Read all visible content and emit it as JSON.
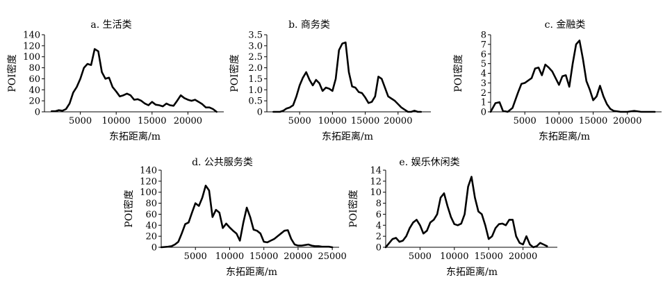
{
  "chart_data": [
    {
      "type": "line",
      "title": "a. 生活类",
      "xlabel": "东拓距离/m",
      "ylabel": "POI密度",
      "xlim": [
        0,
        25000
      ],
      "ylim": [
        0,
        140
      ],
      "xticks": [
        5000,
        10000,
        15000,
        20000
      ],
      "yticks": [
        0,
        20,
        40,
        60,
        80,
        100,
        120,
        140
      ],
      "tick_labels_x": [
        "5000",
        "10000",
        "15000",
        "20000"
      ],
      "tick_labels_y": [
        "0",
        "20",
        "40",
        "60",
        "80",
        "100",
        "120",
        "140"
      ],
      "series": [
        {
          "x": [
            1000,
            1500,
            2000,
            2500,
            3000,
            3500,
            4000,
            4500,
            5000,
            5500,
            6000,
            6500,
            7000,
            7500,
            8000,
            8500,
            9000,
            9500,
            10000,
            10500,
            11000,
            11500,
            12000,
            12500,
            13000,
            13500,
            14000,
            14500,
            15000,
            15500,
            16000,
            16500,
            17000,
            17500,
            18000,
            18500,
            19000,
            19500,
            20000,
            20500,
            21000,
            21500,
            22000,
            22500,
            23000,
            23500,
            24000
          ],
          "y": [
            1,
            1,
            3,
            2,
            5,
            15,
            35,
            45,
            60,
            80,
            87,
            85,
            114,
            110,
            72,
            60,
            62,
            45,
            37,
            28,
            30,
            33,
            30,
            22,
            23,
            20,
            15,
            12,
            18,
            13,
            12,
            10,
            15,
            12,
            11,
            20,
            30,
            25,
            22,
            20,
            22,
            18,
            14,
            8,
            8,
            5,
            0
          ]
        }
      ]
    },
    {
      "type": "line",
      "title": "b. 商务类",
      "xlabel": "东拓距离/m",
      "ylabel": "POI密度",
      "xlim": [
        0,
        25000
      ],
      "ylim": [
        0,
        3.5
      ],
      "xticks": [
        5000,
        10000,
        15000,
        20000
      ],
      "yticks": [
        0,
        0.5,
        1.0,
        1.5,
        2.0,
        2.5,
        3.0,
        3.5
      ],
      "tick_labels_x": [
        "5000",
        "10000",
        "15000",
        "20000"
      ],
      "tick_labels_y": [
        "0",
        "0.5",
        "1.0",
        "1.5",
        "2.0",
        "2.5",
        "3.0",
        "3.5"
      ],
      "series": [
        {
          "x": [
            1000,
            1500,
            2000,
            2500,
            3000,
            3500,
            4000,
            4500,
            5000,
            5500,
            6000,
            6500,
            7000,
            7500,
            8000,
            8500,
            9000,
            9500,
            10000,
            10500,
            11000,
            11500,
            12000,
            12500,
            13000,
            13500,
            14000,
            14500,
            15000,
            15500,
            16000,
            16500,
            17000,
            17500,
            18000,
            18500,
            19000,
            19500,
            20000,
            20500,
            21000,
            21500,
            22000,
            22500,
            23000,
            23500
          ],
          "y": [
            0,
            0,
            0,
            0.05,
            0.15,
            0.2,
            0.3,
            0.7,
            1.2,
            1.55,
            1.8,
            1.45,
            1.2,
            1.45,
            1.3,
            0.95,
            1.1,
            1.05,
            0.95,
            1.5,
            2.8,
            3.1,
            3.15,
            1.8,
            1.15,
            1.1,
            0.9,
            0.85,
            0.65,
            0.4,
            0.45,
            0.7,
            1.6,
            1.5,
            1.1,
            0.7,
            0.6,
            0.5,
            0.35,
            0.2,
            0.1,
            0,
            0,
            0.05,
            0,
            0
          ]
        }
      ]
    },
    {
      "type": "line",
      "title": "c. 金融类",
      "xlabel": "东拓距离/m",
      "ylabel": "POI密度",
      "xlim": [
        0,
        25000
      ],
      "ylim": [
        0,
        8
      ],
      "xticks": [
        5000,
        10000,
        15000,
        20000
      ],
      "yticks": [
        0,
        1,
        2,
        3,
        4,
        5,
        6,
        7,
        8
      ],
      "tick_labels_x": [
        "5000",
        "10000",
        "15000",
        "20000"
      ],
      "tick_labels_y": [
        "0",
        "1",
        "2",
        "3",
        "4",
        "5",
        "6",
        "7",
        "8"
      ],
      "series": [
        {
          "x": [
            0,
            700,
            1300,
            1800,
            2500,
            3200,
            4000,
            4500,
            5000,
            6000,
            6500,
            7000,
            7500,
            8000,
            8500,
            9000,
            9500,
            10000,
            10500,
            11000,
            11500,
            12000,
            12500,
            13000,
            13500,
            14000,
            14500,
            15000,
            15500,
            16000,
            16500,
            17000,
            17500,
            18000,
            19000,
            20000,
            21000,
            22000,
            23000,
            24000
          ],
          "y": [
            0,
            0.9,
            1.0,
            0.1,
            0,
            0.4,
            2.0,
            2.9,
            3.0,
            3.5,
            4.5,
            4.6,
            3.8,
            4.9,
            4.6,
            4.2,
            3.5,
            2.8,
            3.7,
            3.8,
            2.6,
            5.0,
            7.0,
            7.4,
            5.5,
            3.2,
            2.3,
            1.2,
            1.6,
            2.7,
            1.6,
            0.8,
            0.3,
            0.1,
            0,
            0,
            0.1,
            0,
            0,
            0
          ]
        }
      ]
    },
    {
      "type": "line",
      "title": "d. 公共服务类",
      "xlabel": "东拓距离/m",
      "ylabel": "POI密度",
      "xlim": [
        0,
        26000
      ],
      "ylim": [
        0,
        140
      ],
      "xticks": [
        5000,
        10000,
        15000,
        20000,
        25000
      ],
      "yticks": [
        0,
        20,
        40,
        60,
        80,
        100,
        120,
        140
      ],
      "tick_labels_x": [
        "5000",
        "10000",
        "15000",
        "20000",
        "25000"
      ],
      "tick_labels_y": [
        "0",
        "20",
        "40",
        "60",
        "80",
        "100",
        "120",
        "140"
      ],
      "series": [
        {
          "x": [
            0,
            1000,
            1500,
            2000,
            2500,
            3000,
            3500,
            4000,
            4500,
            5000,
            5500,
            6000,
            6500,
            7000,
            7500,
            8000,
            8500,
            9000,
            9500,
            10000,
            10500,
            11000,
            11500,
            12000,
            12500,
            13000,
            13500,
            14000,
            14500,
            15000,
            15500,
            16000,
            16500,
            17000,
            17500,
            18000,
            18500,
            19000,
            19500,
            20000,
            20500,
            21000,
            21500,
            22000,
            22500,
            23000,
            23500,
            24000,
            24500,
            25000
          ],
          "y": [
            0,
            1,
            2,
            5,
            10,
            25,
            42,
            45,
            63,
            80,
            75,
            90,
            112,
            103,
            55,
            68,
            63,
            35,
            43,
            36,
            30,
            25,
            12,
            45,
            72,
            55,
            32,
            30,
            25,
            10,
            9,
            12,
            15,
            20,
            25,
            30,
            31,
            15,
            5,
            3,
            3,
            4,
            5,
            3,
            2,
            2,
            1,
            1,
            1,
            0
          ]
        }
      ]
    },
    {
      "type": "line",
      "title": "e. 娱乐休闲类",
      "xlabel": "东拓距离/m",
      "ylabel": "POI密度",
      "xlim": [
        0,
        25000
      ],
      "ylim": [
        0,
        14
      ],
      "xticks": [
        5000,
        10000,
        15000,
        20000
      ],
      "yticks": [
        0,
        2,
        4,
        6,
        8,
        10,
        12,
        14
      ],
      "tick_labels_x": [
        "5000",
        "10000",
        "15000",
        "20000"
      ],
      "tick_labels_y": [
        "0",
        "2",
        "4",
        "6",
        "8",
        "10",
        "12",
        "14"
      ],
      "series": [
        {
          "x": [
            0,
            1000,
            1500,
            2000,
            2500,
            3000,
            3500,
            4000,
            4500,
            5000,
            5500,
            6000,
            6500,
            7000,
            7500,
            8000,
            8500,
            9000,
            9500,
            10000,
            10500,
            11000,
            11500,
            12000,
            12500,
            13000,
            13500,
            14000,
            14500,
            15000,
            15500,
            16000,
            16500,
            17000,
            17500,
            18000,
            18500,
            19000,
            19500,
            20000,
            20500,
            21000,
            21500,
            22000,
            22500,
            23000,
            23500
          ],
          "y": [
            0,
            1.5,
            1.7,
            1.0,
            1.2,
            2.0,
            3.5,
            4.5,
            5.0,
            4.0,
            2.5,
            3.0,
            4.5,
            5.0,
            6.0,
            9.0,
            9.8,
            7.5,
            5.5,
            4.2,
            4.0,
            4.3,
            6.0,
            11.0,
            12.8,
            9.0,
            6.5,
            6.0,
            4.0,
            1.5,
            2.0,
            3.5,
            4.2,
            4.3,
            4.0,
            5.0,
            5.0,
            2.0,
            0.8,
            0.5,
            2.0,
            0.5,
            0,
            0.2,
            0.8,
            0.5,
            0.2
          ]
        }
      ]
    }
  ]
}
